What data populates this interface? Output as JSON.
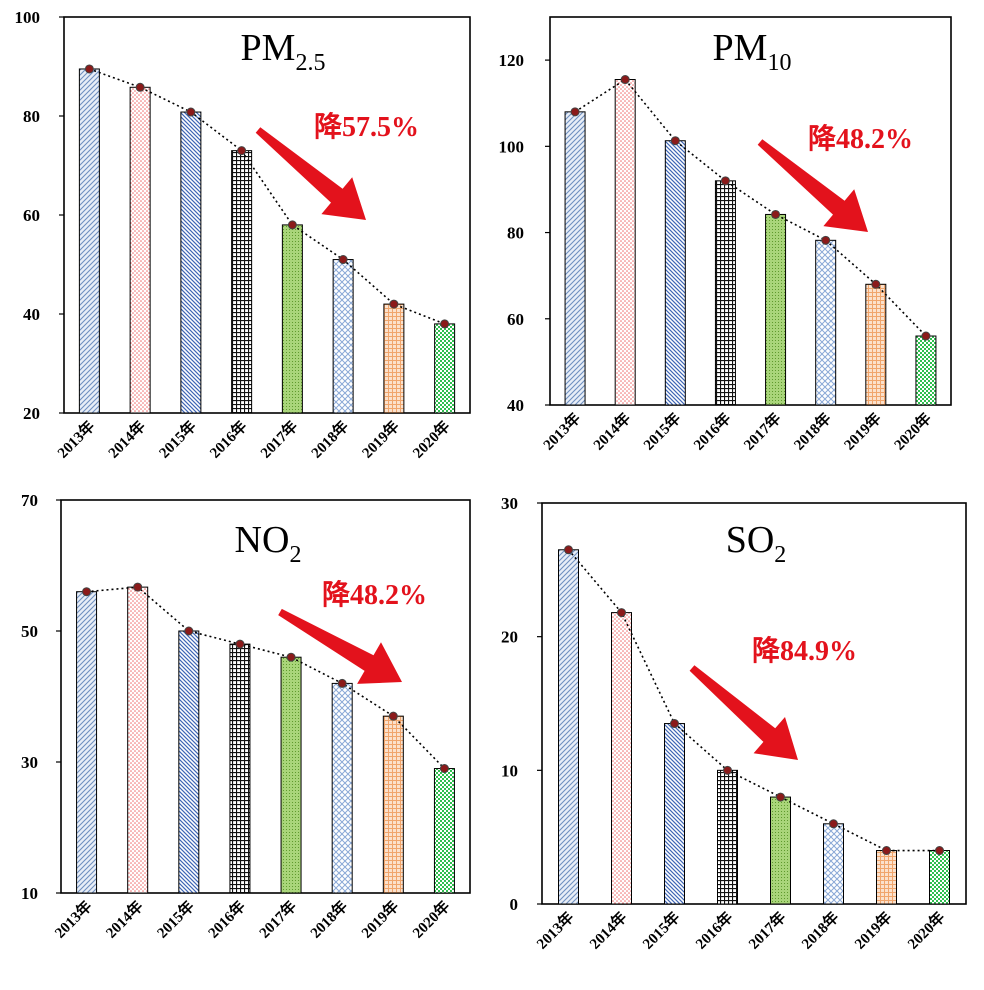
{
  "chart_data": [
    {
      "type": "bar",
      "title": {
        "main": "PM",
        "sub": "2.5"
      },
      "categories": [
        "2013年",
        "2014年",
        "2015年",
        "2016年",
        "2017年",
        "2018年",
        "2019年",
        "2020年"
      ],
      "values": [
        89.5,
        85.8,
        80.8,
        73.0,
        58.0,
        51.0,
        42.0,
        38.0
      ],
      "ylim": [
        20,
        100
      ],
      "yticks": [
        20,
        40,
        60,
        80,
        100
      ],
      "annotation": "降57.5%",
      "trend_line": "dotted",
      "xlabel": "",
      "ylabel": ""
    },
    {
      "type": "bar",
      "title": {
        "main": "PM",
        "sub": "10"
      },
      "categories": [
        "2013年",
        "2014年",
        "2015年",
        "2016年",
        "2017年",
        "2018年",
        "2019年",
        "2020年"
      ],
      "values": [
        108,
        115.5,
        101.3,
        92,
        84.2,
        78.2,
        68,
        56
      ],
      "ylim": [
        40,
        130
      ],
      "yticks": [
        40,
        60,
        80,
        100,
        120
      ],
      "annotation": "降48.2%",
      "trend_line": "dotted",
      "xlabel": "",
      "ylabel": ""
    },
    {
      "type": "bar",
      "title": {
        "main": "NO",
        "sub": "2"
      },
      "categories": [
        "2013年",
        "2014年",
        "2015年",
        "2016年",
        "2017年",
        "2018年",
        "2019年",
        "2020年"
      ],
      "values": [
        56,
        56.7,
        50,
        48,
        46,
        42,
        37,
        29
      ],
      "ylim": [
        10,
        70
      ],
      "yticks": [
        10,
        30,
        50,
        70
      ],
      "annotation": "降48.2%",
      "trend_line": "dotted",
      "xlabel": "",
      "ylabel": ""
    },
    {
      "type": "bar",
      "title": {
        "main": "SO",
        "sub": "2"
      },
      "categories": [
        "2013年",
        "2014年",
        "2015年",
        "2016年",
        "2017年",
        "2018年",
        "2019年",
        "2020年"
      ],
      "values": [
        26.5,
        21.8,
        13.5,
        10,
        8,
        6,
        4,
        4
      ],
      "ylim": [
        0,
        30
      ],
      "yticks": [
        0,
        10,
        20,
        30
      ],
      "annotation": "降84.9%",
      "trend_line": "dotted",
      "xlabel": "",
      "ylabel": ""
    }
  ],
  "bar_colors": [
    "#b9cbe4",
    "#f28a8a",
    "#5a7fc0",
    "#222222",
    "#9fcf6a",
    "#a9c2e3",
    "#f2b38a",
    "#3cc25a"
  ],
  "accent_color": "#e3121c"
}
